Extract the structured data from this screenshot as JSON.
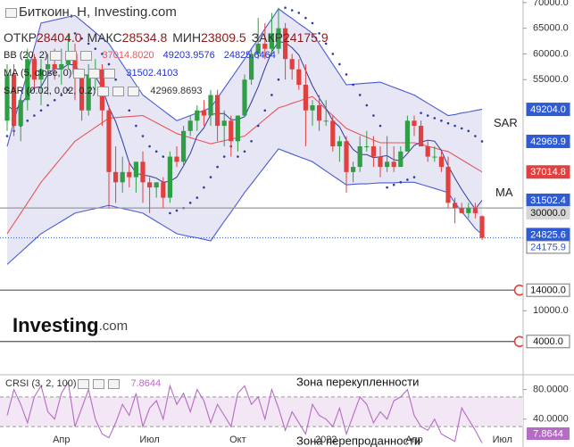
{
  "chart_data": {
    "type": "candlestick",
    "title": "Биткоин, H, Investing.com",
    "stats": [
      {
        "label": "ОТКР",
        "value": "28404.0"
      },
      {
        "label": "МАКС",
        "value": "28534.8"
      },
      {
        "label": "МИН",
        "value": "23809.5"
      },
      {
        "label": "ЗАКР",
        "value": "24175.9"
      }
    ],
    "categories": [
      null,
      null,
      null,
      null,
      null,
      null,
      null,
      null,
      "Апр",
      null,
      null,
      null,
      null,
      null,
      null,
      null,
      null,
      null,
      null,
      null,
      null,
      "Июл",
      null,
      null,
      null,
      null,
      null,
      null,
      null,
      null,
      null,
      null,
      null,
      null,
      "Окт",
      null,
      null,
      null,
      null,
      null,
      null,
      null,
      null,
      null,
      null,
      null,
      null,
      "2022",
      null,
      null,
      null,
      null,
      null,
      null,
      null,
      null,
      null,
      null,
      null,
      null,
      "Апр",
      null,
      null,
      null,
      null,
      null,
      null,
      null,
      null,
      null,
      null,
      null,
      null,
      "Июл"
    ],
    "open": [
      47000,
      56000,
      46000,
      51000,
      59000,
      55000,
      57000,
      58000,
      57000,
      58000,
      60000,
      56000,
      49000,
      56000,
      57000,
      49000,
      37000,
      35000,
      37000,
      36000,
      39000,
      35000,
      34000,
      35000,
      32000,
      40000,
      39000,
      45000,
      47000,
      49000,
      48000,
      52000,
      46000,
      47000,
      43000,
      48000,
      55000,
      60000,
      62000,
      61000,
      61000,
      65000,
      59000,
      57000,
      54000,
      49000,
      50000,
      47000,
      47000,
      42000,
      43000,
      37000,
      38000,
      42000,
      42000,
      40000,
      38000,
      39000,
      38000,
      41000,
      47000,
      46000,
      42000,
      40000,
      40000,
      38000,
      31000,
      30000,
      29000,
      30000,
      28404,
      null,
      null,
      null
    ],
    "high": [
      58000,
      58000,
      52000,
      61000,
      60000,
      59000,
      60000,
      61000,
      61000,
      64000,
      62000,
      57000,
      58000,
      59000,
      58000,
      50000,
      42000,
      40000,
      39000,
      39000,
      41000,
      36000,
      35000,
      36000,
      41000,
      42000,
      46000,
      48000,
      50000,
      51000,
      53000,
      53000,
      49000,
      48000,
      48000,
      56000,
      61000,
      67000,
      66000,
      68000,
      69000,
      66000,
      60000,
      59000,
      58000,
      51000,
      52000,
      51000,
      48000,
      44000,
      44000,
      39000,
      44000,
      45000,
      44000,
      42000,
      44000,
      42000,
      42000,
      48000,
      48000,
      47000,
      43000,
      42000,
      41000,
      40000,
      32000,
      31000,
      31000,
      31000,
      28534.8,
      null,
      null,
      null
    ],
    "low": [
      45000,
      44000,
      43000,
      49000,
      53000,
      50000,
      52000,
      55000,
      54000,
      57000,
      51000,
      47000,
      48000,
      53000,
      46000,
      30000,
      31000,
      33000,
      34000,
      33000,
      31000,
      29000,
      32000,
      30000,
      31000,
      38000,
      38000,
      44000,
      45000,
      46000,
      46000,
      43000,
      42000,
      40000,
      41000,
      48000,
      54000,
      59000,
      59000,
      60000,
      60000,
      55000,
      55000,
      53000,
      42000,
      46000,
      45000,
      46000,
      41000,
      39000,
      33000,
      35000,
      37000,
      41000,
      38000,
      36000,
      37000,
      37000,
      38000,
      41000,
      44000,
      42000,
      39000,
      39000,
      37000,
      30000,
      27000,
      29000,
      28000,
      28000,
      23809.5,
      null,
      null,
      null
    ],
    "close": [
      56000,
      46000,
      51000,
      59000,
      55000,
      57000,
      58000,
      57000,
      58000,
      60000,
      56000,
      49000,
      56000,
      57000,
      49000,
      37000,
      35000,
      37000,
      36000,
      39000,
      35000,
      34000,
      35000,
      32000,
      40000,
      39000,
      45000,
      47000,
      49000,
      48000,
      52000,
      46000,
      47000,
      43000,
      48000,
      55000,
      60000,
      62000,
      61000,
      64000,
      65000,
      59000,
      57000,
      54000,
      49000,
      50000,
      47000,
      47000,
      42000,
      43000,
      37000,
      38000,
      42000,
      42000,
      40000,
      38000,
      39000,
      38000,
      41000,
      47000,
      46000,
      42000,
      40000,
      40000,
      38000,
      31000,
      30000,
      29000,
      30000,
      29000,
      24175.9,
      null,
      null,
      null
    ],
    "up_color": "#2f9e44",
    "down_color": "#e0413f",
    "ylim": [
      -1600,
      70500
    ],
    "yticks": [
      {
        "value": 70000,
        "label": "70000.0"
      },
      {
        "value": 65000,
        "label": "65000.0"
      },
      {
        "value": 60000,
        "label": "60000.0"
      },
      {
        "value": 55000,
        "label": "55000.0"
      },
      {
        "value": 10000,
        "label": "10000.0"
      }
    ],
    "bb": {
      "name": "BB (20, 2)",
      "fill": "#e6e6f5",
      "middle": {
        "color": "#e8555a",
        "readout": "37014.8020",
        "values": [
          25000,
          27000,
          29000,
          31000,
          33000,
          35000,
          36600,
          38200,
          39800,
          41400,
          43000,
          43900,
          44800,
          45700,
          46600,
          47500,
          47600,
          47700,
          47800,
          47900,
          48000,
          47300,
          46600,
          45900,
          45200,
          44500,
          44100,
          43700,
          43300,
          42900,
          42500,
          42800,
          43100,
          43400,
          43700,
          44000,
          45100,
          46200,
          47300,
          48400,
          49500,
          49900,
          50400,
          50800,
          51300,
          51700,
          50500,
          49200,
          48000,
          46700,
          45500,
          44900,
          44300,
          43800,
          43200,
          42700,
          42700,
          42700,
          42700,
          42700,
          42700,
          42400,
          42000,
          41700,
          41300,
          41000,
          40200,
          39400,
          38600,
          37800,
          37014.8,
          null,
          null,
          null
        ]
      },
      "upper": {
        "color": "#4b5bd6",
        "readout": "49203.9576",
        "values": [
          42000,
          46800,
          51600,
          56400,
          61200,
          66000,
          66300,
          66600,
          66900,
          67200,
          67500,
          66400,
          65300,
          64200,
          63100,
          62000,
          60000,
          58000,
          56000,
          54000,
          52000,
          51000,
          50000,
          49000,
          48000,
          47000,
          47500,
          48000,
          48500,
          49000,
          49500,
          51400,
          53300,
          55200,
          57100,
          59000,
          61000,
          62900,
          64900,
          66800,
          68800,
          67800,
          66900,
          65900,
          65000,
          64000,
          62000,
          60000,
          58000,
          56000,
          54000,
          54100,
          54200,
          54300,
          54400,
          54500,
          54000,
          53500,
          53000,
          52500,
          52000,
          51200,
          50400,
          49600,
          48800,
          48000,
          48200,
          48500,
          48700,
          49000,
          49203.9576,
          null,
          null,
          null
        ]
      },
      "lower": {
        "color": "#4b5bd6",
        "readout": "24825.6464",
        "values": [
          19000,
          20200,
          21400,
          22600,
          23800,
          25000,
          25800,
          26600,
          27400,
          28200,
          29000,
          29300,
          29600,
          29900,
          30200,
          30500,
          30200,
          29900,
          29600,
          29300,
          29000,
          28200,
          27400,
          26600,
          25800,
          25000,
          24700,
          24400,
          24200,
          23900,
          23600,
          25500,
          27400,
          29200,
          31100,
          33000,
          34700,
          36400,
          38100,
          39800,
          41500,
          41000,
          40500,
          40000,
          39500,
          39000,
          38100,
          37200,
          36300,
          35400,
          34500,
          34600,
          34700,
          34700,
          34800,
          34900,
          34900,
          34900,
          35000,
          35000,
          35000,
          34600,
          34200,
          33800,
          33400,
          33000,
          31000,
          29300,
          27700,
          26000,
          24825.6464,
          null,
          null,
          null
        ]
      }
    },
    "ma": {
      "name": "MA (5, close, 0)",
      "label": "MA",
      "color": "#2d3a9e",
      "readout": "31502.4103",
      "values": [
        50000,
        49000,
        50000,
        52000,
        53400,
        53600,
        56000,
        57200,
        57000,
        58000,
        57800,
        56000,
        55800,
        55600,
        53400,
        49600,
        46800,
        43000,
        38800,
        36800,
        36400,
        36200,
        35800,
        35000,
        35200,
        36000,
        38200,
        40600,
        44000,
        45600,
        48200,
        48400,
        48400,
        47200,
        47200,
        47800,
        50600,
        53600,
        57200,
        60400,
        62400,
        62200,
        61200,
        59800,
        56800,
        53800,
        51400,
        49400,
        47000,
        45800,
        43200,
        41400,
        40400,
        40400,
        39800,
        40000,
        40200,
        39400,
        39200,
        40600,
        42200,
        42800,
        43200,
        43000,
        41200,
        38200,
        35800,
        33600,
        31600,
        29800,
        31502.4103,
        null,
        null,
        null
      ]
    },
    "sar": {
      "name": "SAR (0.02, 0.02, 0.2)",
      "label": "SAR",
      "color": "#2d3a9e",
      "readout": "42969.8693",
      "values": [
        44000,
        45000,
        46000,
        47000,
        48000,
        49000,
        50000,
        51000,
        52000,
        53000,
        64000,
        63000,
        62000,
        61000,
        60000,
        58000,
        55000,
        52000,
        49000,
        46000,
        44000,
        42000,
        41000,
        40000,
        29000,
        29500,
        30000,
        31000,
        32000,
        34000,
        36000,
        38000,
        40000,
        42000,
        40000,
        41000,
        43000,
        46000,
        49000,
        52000,
        55000,
        69000,
        68500,
        68000,
        67000,
        66000,
        64000,
        62000,
        60000,
        58000,
        56000,
        54000,
        52000,
        50000,
        48000,
        46000,
        34000,
        34500,
        35000,
        35500,
        36000,
        48500,
        48000,
        47500,
        47000,
        46500,
        46000,
        45500,
        45000,
        44000,
        42969.8693,
        null,
        null,
        null
      ]
    },
    "price_markers": [
      {
        "value": 49204,
        "label": "49204.0",
        "color": "#2f5bd3",
        "text_color": "#ffffff"
      },
      {
        "value": 42969.9,
        "color": "#2f5bd3",
        "text_color": "#ffffff"
      },
      {
        "value": 37014.8,
        "color": "#e0413f",
        "text_color": "#ffffff"
      },
      {
        "value": 31502.4,
        "color": "#2f5bd3",
        "text_color": "#ffffff"
      },
      {
        "value": 30000,
        "label": "30000.0",
        "color": "#d6d6d6",
        "text_color": "#111111",
        "line": "solid"
      },
      {
        "value": 24825.6,
        "color": "#2f5bd3",
        "text_color": "#ffffff"
      },
      {
        "value": 24175.9,
        "color": "#ffffff",
        "text_color": "#2f5bd3",
        "line": "dotted"
      },
      {
        "value": 14000,
        "label": "14000.0",
        "color": "#ffffff",
        "text_color": "#111111",
        "line": "alert"
      },
      {
        "value": 4000,
        "label": "4000.0",
        "color": "#ffffff",
        "text_color": "#111111",
        "line": "alert"
      }
    ],
    "logo": {
      "name": "Investing",
      "suffix": ".com"
    },
    "crsi": {
      "name": "CRSI (3, 2, 100)",
      "color": "#b46cc4",
      "zone_fill": "#f3e6f5",
      "values": [
        45,
        80,
        60,
        35,
        70,
        85,
        50,
        40,
        75,
        90,
        30,
        55,
        80,
        40,
        20,
        15,
        35,
        60,
        45,
        75,
        30,
        55,
        65,
        40,
        85,
        60,
        75,
        50,
        80,
        65,
        35,
        60,
        45,
        30,
        75,
        85,
        60,
        70,
        40,
        80,
        55,
        25,
        50,
        35,
        20,
        60,
        45,
        40,
        30,
        55,
        20,
        45,
        70,
        60,
        35,
        50,
        40,
        65,
        70,
        80,
        45,
        30,
        25,
        40,
        20,
        15,
        10,
        55,
        40,
        25,
        7.8644,
        null,
        null,
        null
      ],
      "ylim": [
        0,
        100
      ],
      "yticks": [
        {
          "value": 80,
          "label": "80.0000"
        },
        {
          "value": 40,
          "label": "40.0000"
        }
      ],
      "zones": [
        {
          "value": 70,
          "label": "Зона перекупленности"
        },
        {
          "value": 30,
          "label": "Зона перепроданности"
        }
      ]
    }
  }
}
